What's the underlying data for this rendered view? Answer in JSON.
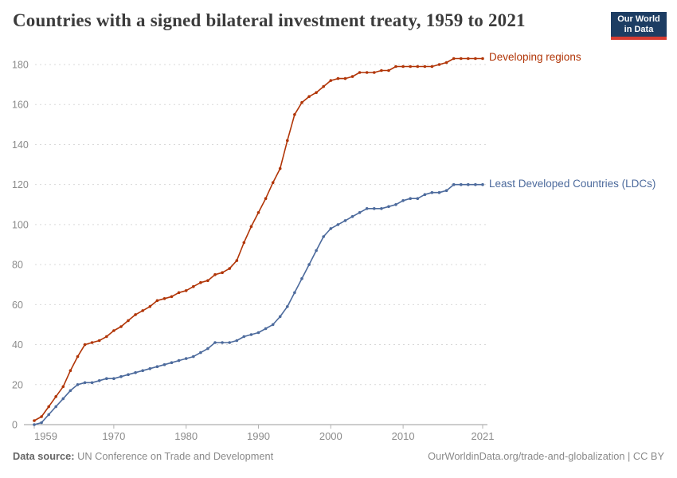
{
  "title": "Countries with a signed bilateral investment treaty, 1959 to 2021",
  "logo": {
    "line1": "Our World",
    "line2": "in Data",
    "bg_color": "#1D3D63",
    "bar_color": "#D73C32"
  },
  "footer": {
    "source_label": "Data source:",
    "source_text": "UN Conference on Trade and Development",
    "right_text": "OurWorldinData.org/trade-and-globalization | CC BY"
  },
  "chart_data": {
    "type": "line",
    "title": "Countries with a signed bilateral investment treaty, 1959 to 2021",
    "xlabel": "",
    "ylabel": "",
    "x_start": 1959,
    "x_end": 2021,
    "xticks": [
      1959,
      1970,
      1980,
      1990,
      2000,
      2010,
      2021
    ],
    "yticks": [
      0,
      20,
      40,
      60,
      80,
      100,
      120,
      140,
      160,
      180
    ],
    "ylim": [
      0,
      185
    ],
    "grid": "horizontal-dashed",
    "legend_position": "labels-at-line-ends",
    "axis_text_color": "#8b8b8b",
    "grid_color": "#d9d9d9",
    "series": [
      {
        "name": "Developing regions",
        "color": "#B13507",
        "x_years": "1959-2021 annual",
        "values": [
          2,
          4,
          9,
          14,
          19,
          27,
          34,
          40,
          41,
          42,
          44,
          47,
          49,
          52,
          55,
          57,
          59,
          62,
          63,
          64,
          66,
          67,
          69,
          71,
          72,
          75,
          76,
          78,
          82,
          91,
          99,
          106,
          113,
          121,
          128,
          142,
          155,
          161,
          164,
          166,
          169,
          172,
          173,
          173,
          174,
          176,
          176,
          176,
          177,
          177,
          179,
          179,
          179,
          179,
          179,
          179,
          180,
          181,
          183,
          183,
          183,
          183,
          183
        ]
      },
      {
        "name": "Least Developed Countries (LDCs)",
        "color": "#4C6A9C",
        "x_years": "1959-2021 annual",
        "values": [
          0,
          1,
          5,
          9,
          13,
          17,
          20,
          21,
          21,
          22,
          23,
          23,
          24,
          25,
          26,
          27,
          28,
          29,
          30,
          31,
          32,
          33,
          34,
          36,
          38,
          41,
          41,
          41,
          42,
          44,
          45,
          46,
          48,
          50,
          54,
          59,
          66,
          73,
          80,
          87,
          94,
          98,
          100,
          102,
          104,
          106,
          108,
          108,
          108,
          109,
          110,
          112,
          113,
          113,
          115,
          116,
          116,
          117,
          120,
          120,
          120,
          120,
          120
        ]
      }
    ]
  }
}
